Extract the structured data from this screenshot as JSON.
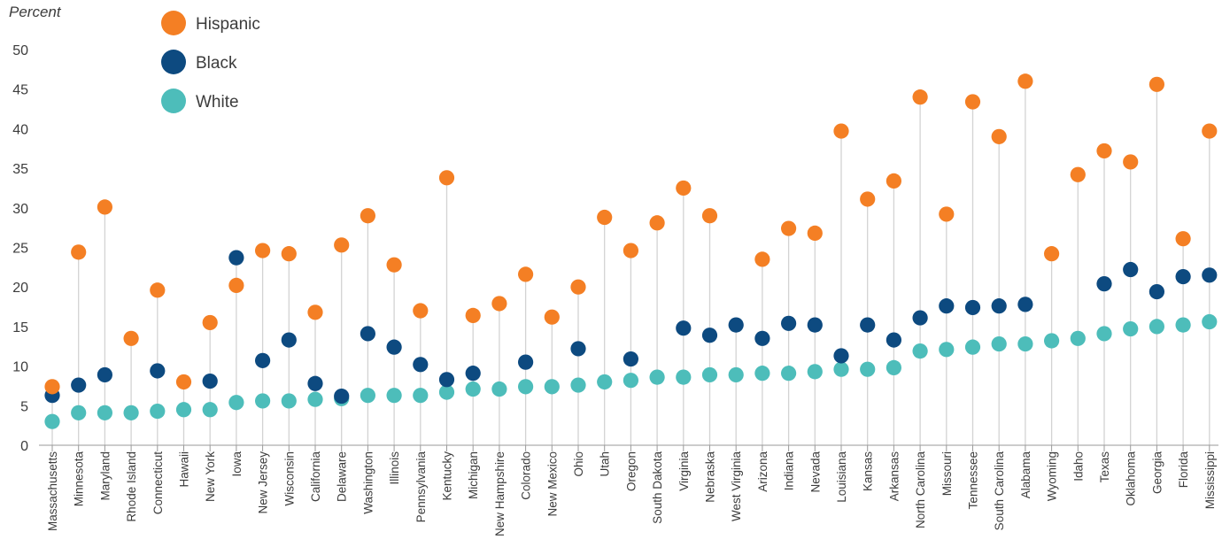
{
  "chart_data": {
    "type": "scatter",
    "ylabel": "Percent",
    "ylim": [
      0,
      50
    ],
    "yticks": [
      0,
      5,
      10,
      15,
      20,
      25,
      30,
      35,
      40,
      45,
      50
    ],
    "grid": false,
    "legend_position": "top-left",
    "categories": [
      "Massachusetts",
      "Minnesota",
      "Maryland",
      "Rhode Island",
      "Connecticut",
      "Hawaii",
      "New York",
      "Iowa",
      "New Jersey",
      "Wisconsin",
      "California",
      "Delaware",
      "Washington",
      "Illinois",
      "Pennsylvania",
      "Kentucky",
      "Michigan",
      "New Hampshire",
      "Colorado",
      "New Mexico",
      "Ohio",
      "Utah",
      "Oregon",
      "South Dakota",
      "Virginia",
      "Nebraska",
      "West Virginia",
      "Arizona",
      "Indiana",
      "Nevada",
      "Louisiana",
      "Kansas",
      "Arkansas",
      "North Carolina",
      "Missouri",
      "Tennessee",
      "South Carolina",
      "Alabama",
      "Wyoming",
      "Idaho",
      "Texas",
      "Oklahoma",
      "Georgia",
      "Florida",
      "Mississippi"
    ],
    "series": [
      {
        "name": "Hispanic",
        "color": "#f47f24",
        "values": [
          7.4,
          24.4,
          30.1,
          13.5,
          19.6,
          8.0,
          15.5,
          20.2,
          24.6,
          24.2,
          16.8,
          25.3,
          29.0,
          22.8,
          17.0,
          33.8,
          16.4,
          17.9,
          21.6,
          16.2,
          20.0,
          28.8,
          24.6,
          28.1,
          32.5,
          29.0,
          null,
          23.5,
          27.4,
          26.8,
          39.7,
          31.1,
          33.4,
          44.0,
          29.2,
          43.4,
          39.0,
          46.0,
          24.2,
          34.2,
          37.2,
          35.8,
          45.6,
          26.1,
          39.7
        ]
      },
      {
        "name": "Black",
        "color": "#0d4a80",
        "values": [
          6.3,
          7.6,
          8.9,
          null,
          9.4,
          null,
          8.1,
          23.7,
          10.7,
          13.3,
          7.8,
          6.2,
          14.1,
          12.4,
          10.2,
          8.3,
          9.1,
          null,
          10.5,
          null,
          12.2,
          null,
          10.9,
          null,
          14.8,
          13.9,
          15.2,
          13.5,
          15.4,
          15.2,
          11.3,
          15.2,
          13.3,
          16.1,
          17.6,
          17.4,
          17.6,
          17.8,
          null,
          null,
          20.4,
          22.2,
          19.4,
          21.3,
          21.5
        ]
      },
      {
        "name": "White",
        "color": "#4dbdba",
        "values": [
          3.0,
          4.1,
          4.1,
          4.1,
          4.3,
          4.5,
          4.5,
          5.4,
          5.6,
          5.6,
          5.8,
          5.9,
          6.3,
          6.3,
          6.3,
          6.7,
          7.1,
          7.1,
          7.4,
          7.4,
          7.6,
          8.0,
          8.2,
          8.6,
          8.6,
          8.9,
          8.9,
          9.1,
          9.1,
          9.3,
          9.6,
          9.6,
          9.8,
          11.9,
          12.1,
          12.4,
          12.8,
          12.8,
          13.2,
          13.5,
          14.1,
          14.7,
          15.0,
          15.2,
          15.6
        ]
      }
    ]
  }
}
